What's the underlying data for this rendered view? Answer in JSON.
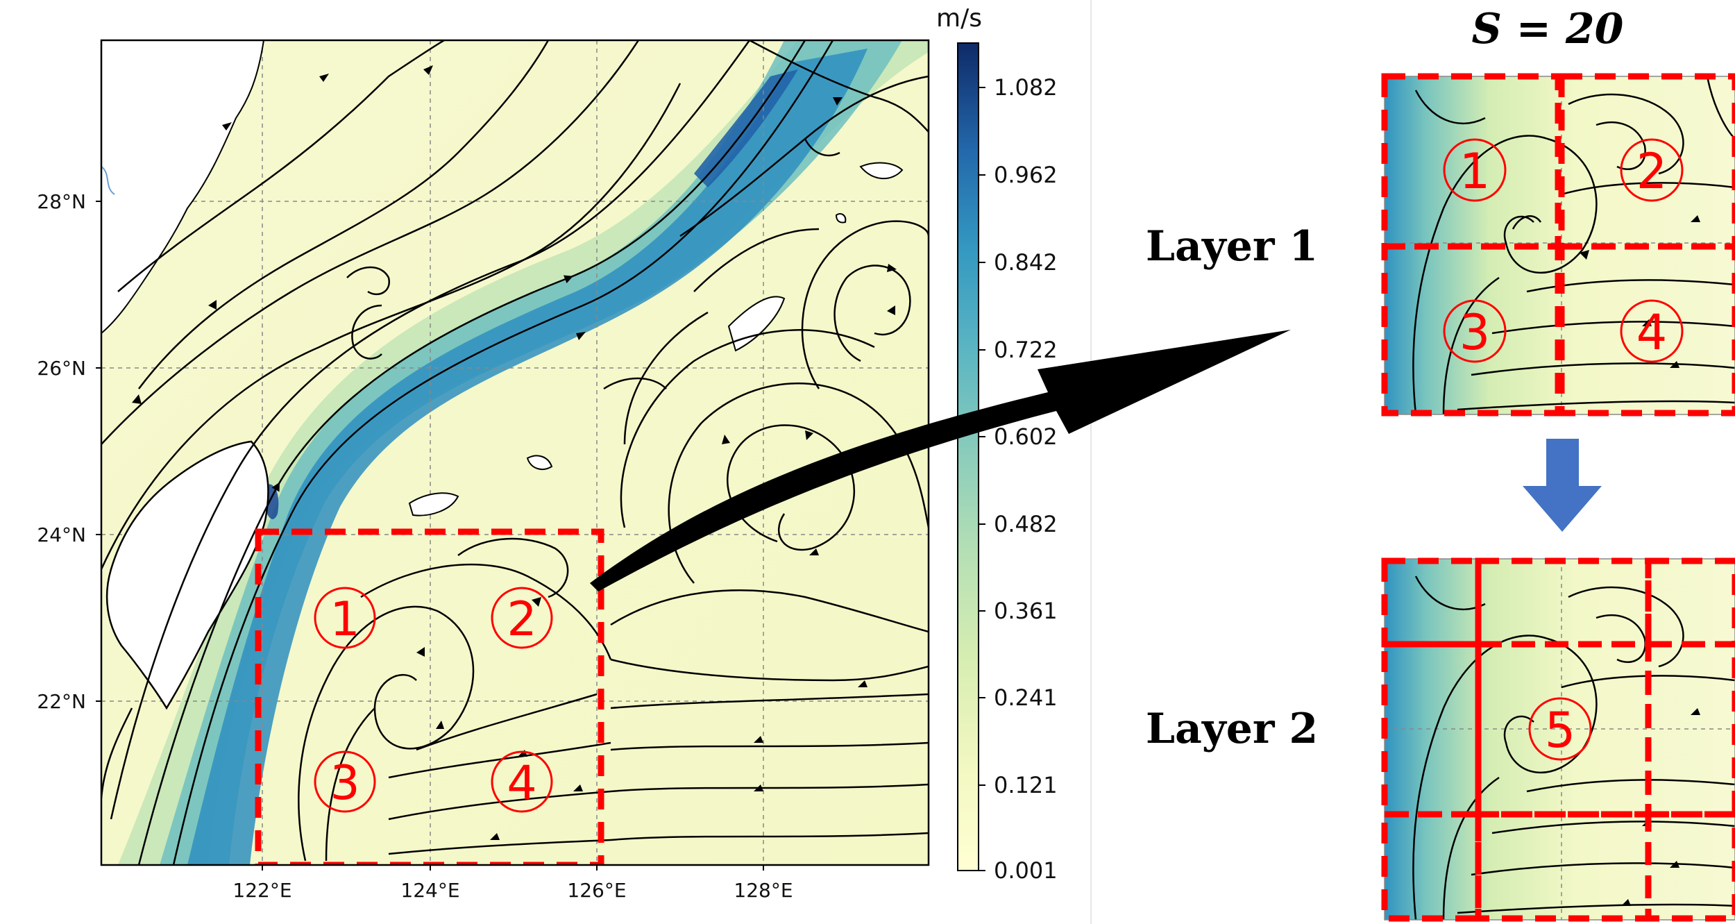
{
  "map": {
    "lat_labels": [
      "28°N",
      "26°N",
      "24°N",
      "22°N"
    ],
    "lon_labels": [
      "122°E",
      "124°E",
      "126°E",
      "128°E"
    ]
  },
  "colorbar": {
    "unit": "m/s",
    "ticks": [
      "1.082",
      "0.962",
      "0.842",
      "0.722",
      "0.602",
      "0.482",
      "0.361",
      "0.241",
      "0.121",
      "0.001"
    ],
    "colors": [
      "#ffffcc",
      "#f2f8c2",
      "#dcefb0",
      "#bfe3b4",
      "#9dd4b8",
      "#77c3bd",
      "#4fb0c4",
      "#2f93c0",
      "#2170b0",
      "#1f4f96",
      "#0f2d6b"
    ]
  },
  "map_regions": [
    "①",
    "②",
    "③",
    "④"
  ],
  "right": {
    "s_label": "S = 20",
    "layer1_label": "Layer 1",
    "layer2_label": "Layer 2",
    "layer1_regions": [
      "①",
      "②",
      "③",
      "④"
    ],
    "layer2_region": "⑤"
  },
  "colors": {
    "box": "#ff0000",
    "down_arrow": "#4472c4",
    "arrow": "#000000",
    "land": "#ffffff"
  }
}
